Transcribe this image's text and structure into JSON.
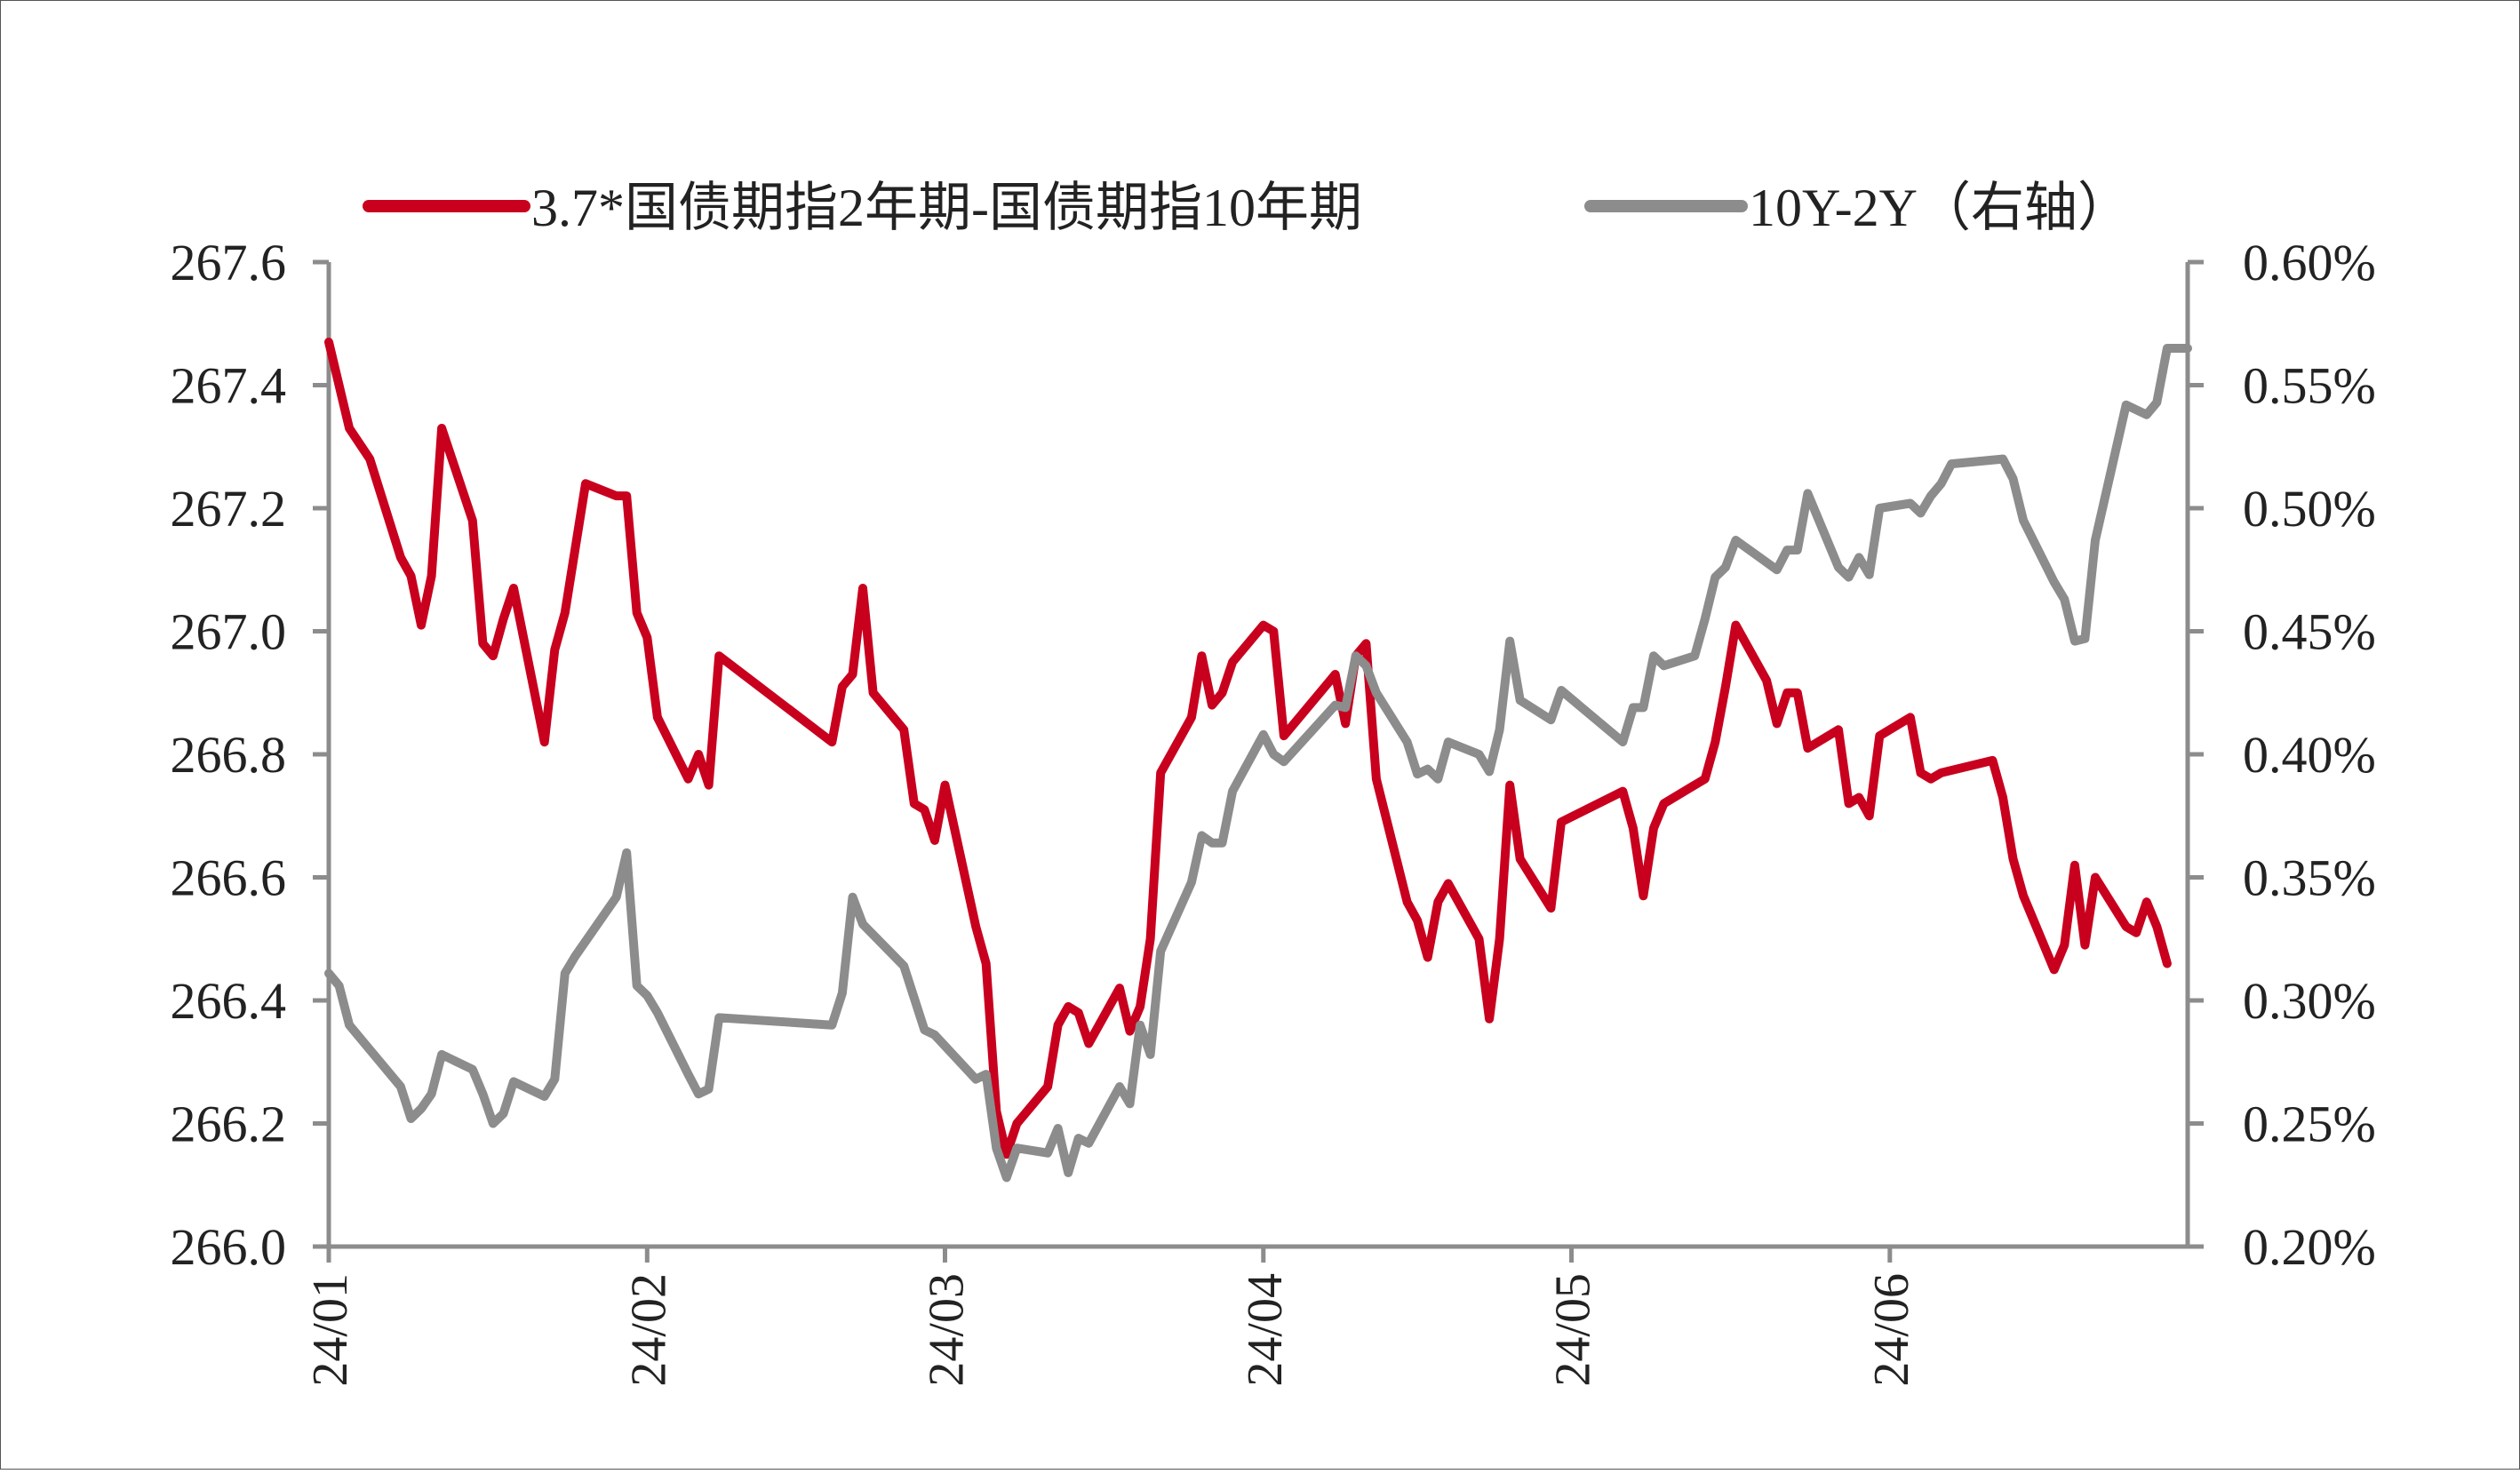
{
  "chart_data": {
    "type": "line",
    "title": "",
    "grid": false,
    "legend_position": "top",
    "x_categories": [
      "24/01",
      "24/02",
      "24/03",
      "24/04",
      "24/05",
      "24/06"
    ],
    "left_axis": {
      "min": 266.0,
      "max": 267.6,
      "ticks": [
        "267.6",
        "267.4",
        "267.2",
        "267.0",
        "266.8",
        "266.6",
        "266.4",
        "266.2",
        "266.0"
      ]
    },
    "right_axis": {
      "label": "右轴",
      "min": 0.2,
      "max": 0.6,
      "ticks": [
        "0.60%",
        "0.55%",
        "0.50%",
        "0.45%",
        "0.40%",
        "0.35%",
        "0.30%",
        "0.25%",
        "0.20%"
      ]
    },
    "series": [
      {
        "name": "3.7*国债期指2年期-国债期指10年期",
        "axis": "left",
        "color": "#C8001E",
        "points": [
          [
            "2024-01-01",
            267.47
          ],
          [
            "2024-01-03",
            267.33
          ],
          [
            "2024-01-05",
            267.28
          ],
          [
            "2024-01-08",
            267.12
          ],
          [
            "2024-01-09",
            267.09
          ],
          [
            "2024-01-10",
            267.01
          ],
          [
            "2024-01-11",
            267.09
          ],
          [
            "2024-01-12",
            267.33
          ],
          [
            "2024-01-15",
            267.18
          ],
          [
            "2024-01-16",
            266.98
          ],
          [
            "2024-01-17",
            266.96
          ],
          [
            "2024-01-18",
            267.02
          ],
          [
            "2024-01-19",
            267.07
          ],
          [
            "2024-01-22",
            266.82
          ],
          [
            "2024-01-23",
            266.97
          ],
          [
            "2024-01-24",
            267.03
          ],
          [
            "2024-01-26",
            267.24
          ],
          [
            "2024-01-29",
            267.22
          ],
          [
            "2024-01-30",
            267.22
          ],
          [
            "2024-01-31",
            267.03
          ],
          [
            "2024-02-01",
            266.99
          ],
          [
            "2024-02-02",
            266.86
          ],
          [
            "2024-02-05",
            266.76
          ],
          [
            "2024-02-06",
            266.8
          ],
          [
            "2024-02-07",
            266.75
          ],
          [
            "2024-02-08",
            266.96
          ],
          [
            "2024-02-19",
            266.82
          ],
          [
            "2024-02-20",
            266.91
          ],
          [
            "2024-02-21",
            266.93
          ],
          [
            "2024-02-22",
            267.07
          ],
          [
            "2024-02-23",
            266.9
          ],
          [
            "2024-02-26",
            266.84
          ],
          [
            "2024-02-27",
            266.72
          ],
          [
            "2024-02-28",
            266.71
          ],
          [
            "2024-02-29",
            266.66
          ],
          [
            "2024-03-01",
            266.75
          ],
          [
            "2024-03-04",
            266.52
          ],
          [
            "2024-03-05",
            266.46
          ],
          [
            "2024-03-06",
            266.22
          ],
          [
            "2024-03-07",
            266.15
          ],
          [
            "2024-03-08",
            266.2
          ],
          [
            "2024-03-11",
            266.26
          ],
          [
            "2024-03-12",
            266.36
          ],
          [
            "2024-03-13",
            266.39
          ],
          [
            "2024-03-14",
            266.38
          ],
          [
            "2024-03-15",
            266.33
          ],
          [
            "2024-03-18",
            266.42
          ],
          [
            "2024-03-19",
            266.35
          ],
          [
            "2024-03-20",
            266.39
          ],
          [
            "2024-03-21",
            266.5
          ],
          [
            "2024-03-22",
            266.77
          ],
          [
            "2024-03-25",
            266.86
          ],
          [
            "2024-03-26",
            266.96
          ],
          [
            "2024-03-27",
            266.88
          ],
          [
            "2024-03-28",
            266.9
          ],
          [
            "2024-03-29",
            266.95
          ],
          [
            "2024-04-01",
            267.01
          ],
          [
            "2024-04-02",
            267.0
          ],
          [
            "2024-04-03",
            266.83
          ],
          [
            "2024-04-08",
            266.93
          ],
          [
            "2024-04-09",
            266.85
          ],
          [
            "2024-04-10",
            266.96
          ],
          [
            "2024-04-11",
            266.98
          ],
          [
            "2024-04-12",
            266.76
          ],
          [
            "2024-04-15",
            266.56
          ],
          [
            "2024-04-16",
            266.53
          ],
          [
            "2024-04-17",
            266.47
          ],
          [
            "2024-04-18",
            266.56
          ],
          [
            "2024-04-19",
            266.59
          ],
          [
            "2024-04-22",
            266.5
          ],
          [
            "2024-04-23",
            266.37
          ],
          [
            "2024-04-24",
            266.5
          ],
          [
            "2024-04-25",
            266.75
          ],
          [
            "2024-04-26",
            266.63
          ],
          [
            "2024-04-29",
            266.55
          ],
          [
            "2024-04-30",
            266.69
          ],
          [
            "2024-05-06",
            266.74
          ],
          [
            "2024-05-07",
            266.68
          ],
          [
            "2024-05-08",
            266.57
          ],
          [
            "2024-05-09",
            266.68
          ],
          [
            "2024-05-10",
            266.72
          ],
          [
            "2024-05-13",
            266.75
          ],
          [
            "2024-05-14",
            266.76
          ],
          [
            "2024-05-15",
            266.82
          ],
          [
            "2024-05-16",
            266.91
          ],
          [
            "2024-05-17",
            267.01
          ],
          [
            "2024-05-20",
            266.92
          ],
          [
            "2024-05-21",
            266.85
          ],
          [
            "2024-05-22",
            266.9
          ],
          [
            "2024-05-23",
            266.9
          ],
          [
            "2024-05-24",
            266.81
          ],
          [
            "2024-05-27",
            266.84
          ],
          [
            "2024-05-28",
            266.72
          ],
          [
            "2024-05-29",
            266.73
          ],
          [
            "2024-05-30",
            266.7
          ],
          [
            "2024-05-31",
            266.83
          ],
          [
            "2024-06-03",
            266.86
          ],
          [
            "2024-06-04",
            266.77
          ],
          [
            "2024-06-05",
            266.76
          ],
          [
            "2024-06-06",
            266.77
          ],
          [
            "2024-06-11",
            266.79
          ],
          [
            "2024-06-12",
            266.73
          ],
          [
            "2024-06-13",
            266.63
          ],
          [
            "2024-06-14",
            266.57
          ],
          [
            "2024-06-17",
            266.45
          ],
          [
            "2024-06-18",
            266.49
          ],
          [
            "2024-06-19",
            266.62
          ],
          [
            "2024-06-20",
            266.49
          ],
          [
            "2024-06-21",
            266.6
          ],
          [
            "2024-06-24",
            266.52
          ],
          [
            "2024-06-25",
            266.51
          ],
          [
            "2024-06-26",
            266.56
          ],
          [
            "2024-06-27",
            266.52
          ],
          [
            "2024-06-28",
            266.46
          ]
        ]
      },
      {
        "name": "10Y-2Y（右轴）",
        "axis": "right",
        "color": "#8C8C8C",
        "points": [
          [
            "2024-01-01",
            0.311
          ],
          [
            "2024-01-02",
            0.306
          ],
          [
            "2024-01-03",
            0.29
          ],
          [
            "2024-01-05",
            0.28
          ],
          [
            "2024-01-08",
            0.265
          ],
          [
            "2024-01-09",
            0.252
          ],
          [
            "2024-01-10",
            0.256
          ],
          [
            "2024-01-11",
            0.262
          ],
          [
            "2024-01-12",
            0.278
          ],
          [
            "2024-01-15",
            0.272
          ],
          [
            "2024-01-16",
            0.262
          ],
          [
            "2024-01-17",
            0.25
          ],
          [
            "2024-01-18",
            0.254
          ],
          [
            "2024-01-19",
            0.267
          ],
          [
            "2024-01-22",
            0.261
          ],
          [
            "2024-01-23",
            0.268
          ],
          [
            "2024-01-24",
            0.311
          ],
          [
            "2024-01-25",
            0.318
          ],
          [
            "2024-01-29",
            0.342
          ],
          [
            "2024-01-30",
            0.36
          ],
          [
            "2024-01-31",
            0.306
          ],
          [
            "2024-02-01",
            0.302
          ],
          [
            "2024-02-02",
            0.295
          ],
          [
            "2024-02-05",
            0.27
          ],
          [
            "2024-02-06",
            0.262
          ],
          [
            "2024-02-07",
            0.264
          ],
          [
            "2024-02-08",
            0.293
          ],
          [
            "2024-02-19",
            0.29
          ],
          [
            "2024-02-20",
            0.303
          ],
          [
            "2024-02-21",
            0.342
          ],
          [
            "2024-02-22",
            0.331
          ],
          [
            "2024-02-26",
            0.314
          ],
          [
            "2024-02-27",
            0.301
          ],
          [
            "2024-02-28",
            0.288
          ],
          [
            "2024-02-29",
            0.286
          ],
          [
            "2024-03-04",
            0.268
          ],
          [
            "2024-03-05",
            0.27
          ],
          [
            "2024-03-06",
            0.24
          ],
          [
            "2024-03-07",
            0.228
          ],
          [
            "2024-03-08",
            0.24
          ],
          [
            "2024-03-11",
            0.238
          ],
          [
            "2024-03-12",
            0.248
          ],
          [
            "2024-03-13",
            0.23
          ],
          [
            "2024-03-14",
            0.244
          ],
          [
            "2024-03-15",
            0.242
          ],
          [
            "2024-03-18",
            0.265
          ],
          [
            "2024-03-19",
            0.258
          ],
          [
            "2024-03-20",
            0.29
          ],
          [
            "2024-03-21",
            0.278
          ],
          [
            "2024-03-22",
            0.32
          ],
          [
            "2024-03-25",
            0.348
          ],
          [
            "2024-03-26",
            0.367
          ],
          [
            "2024-03-27",
            0.364
          ],
          [
            "2024-03-28",
            0.364
          ],
          [
            "2024-03-29",
            0.385
          ],
          [
            "2024-04-01",
            0.408
          ],
          [
            "2024-04-02",
            0.4
          ],
          [
            "2024-04-03",
            0.397
          ],
          [
            "2024-04-08",
            0.42
          ],
          [
            "2024-04-09",
            0.419
          ],
          [
            "2024-04-10",
            0.44
          ],
          [
            "2024-04-11",
            0.436
          ],
          [
            "2024-04-12",
            0.425
          ],
          [
            "2024-04-15",
            0.405
          ],
          [
            "2024-04-16",
            0.392
          ],
          [
            "2024-04-17",
            0.394
          ],
          [
            "2024-04-18",
            0.39
          ],
          [
            "2024-04-19",
            0.405
          ],
          [
            "2024-04-22",
            0.4
          ],
          [
            "2024-04-23",
            0.393
          ],
          [
            "2024-04-24",
            0.41
          ],
          [
            "2024-04-25",
            0.446
          ],
          [
            "2024-04-26",
            0.422
          ],
          [
            "2024-04-29",
            0.414
          ],
          [
            "2024-04-30",
            0.426
          ],
          [
            "2024-05-06",
            0.405
          ],
          [
            "2024-05-07",
            0.419
          ],
          [
            "2024-05-08",
            0.419
          ],
          [
            "2024-05-09",
            0.44
          ],
          [
            "2024-05-10",
            0.436
          ],
          [
            "2024-05-13",
            0.44
          ],
          [
            "2024-05-14",
            0.455
          ],
          [
            "2024-05-15",
            0.472
          ],
          [
            "2024-05-16",
            0.476
          ],
          [
            "2024-05-17",
            0.487
          ],
          [
            "2024-05-20",
            0.478
          ],
          [
            "2024-05-21",
            0.475
          ],
          [
            "2024-05-22",
            0.483
          ],
          [
            "2024-05-23",
            0.483
          ],
          [
            "2024-05-24",
            0.506
          ],
          [
            "2024-05-27",
            0.476
          ],
          [
            "2024-05-28",
            0.472
          ],
          [
            "2024-05-29",
            0.48
          ],
          [
            "2024-05-30",
            0.473
          ],
          [
            "2024-05-31",
            0.5
          ],
          [
            "2024-06-03",
            0.502
          ],
          [
            "2024-06-04",
            0.498
          ],
          [
            "2024-06-05",
            0.505
          ],
          [
            "2024-06-06",
            0.51
          ],
          [
            "2024-06-07",
            0.518
          ],
          [
            "2024-06-12",
            0.52
          ],
          [
            "2024-06-13",
            0.512
          ],
          [
            "2024-06-14",
            0.495
          ],
          [
            "2024-06-17",
            0.47
          ],
          [
            "2024-06-18",
            0.463
          ],
          [
            "2024-06-19",
            0.446
          ],
          [
            "2024-06-20",
            0.447
          ],
          [
            "2024-06-21",
            0.487
          ],
          [
            "2024-06-24",
            0.542
          ],
          [
            "2024-06-25",
            0.54
          ],
          [
            "2024-06-26",
            0.538
          ],
          [
            "2024-06-27",
            0.543
          ],
          [
            "2024-06-28",
            0.565
          ],
          [
            "2024-06-30",
            0.565
          ]
        ]
      }
    ]
  }
}
